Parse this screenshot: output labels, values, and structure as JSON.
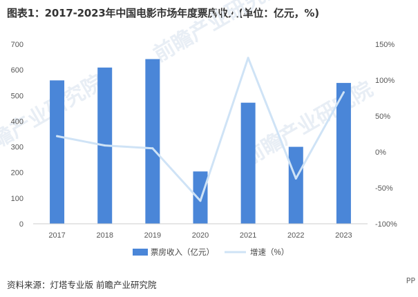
{
  "title": "图表1：2017-2023年中国电影市场年度票房收入(单位：亿元，%)",
  "source": "资料来源：灯塔专业版 前瞻产业研究院",
  "corner_text": "PP",
  "watermark_text": "前瞻产业研究院",
  "chart_data": {
    "type": "bar+line",
    "title": "图表1：2017-2023年中国电影市场年度票房收入(单位：亿元，%)",
    "categories": [
      "2017",
      "2018",
      "2019",
      "2020",
      "2021",
      "2022",
      "2023"
    ],
    "series": [
      {
        "name": "票房收入（亿元）",
        "type": "bar",
        "axis": "left",
        "values": [
          559,
          609,
          642,
          204,
          472,
          300,
          549
        ],
        "color": "#4a86d8"
      },
      {
        "name": "增速（%）",
        "type": "line",
        "axis": "right",
        "values": [
          22,
          9,
          5,
          -68,
          131,
          -37,
          83
        ],
        "color": "#cfe3f6"
      }
    ],
    "y_left": {
      "min": 0,
      "max": 700,
      "ticks": [
        0,
        100,
        200,
        300,
        400,
        500,
        600,
        700
      ],
      "tick_labels": [
        "0",
        "100",
        "200",
        "300",
        "400",
        "500",
        "600",
        "700"
      ]
    },
    "y_right": {
      "min": -100,
      "max": 150,
      "ticks": [
        -100,
        -50,
        0,
        50,
        100,
        150
      ],
      "tick_labels": [
        "-100%",
        "-50%",
        "0%",
        "50%",
        "100%",
        "150%"
      ]
    },
    "legend": {
      "position": "bottom-center",
      "entries": [
        "票房收入（亿元）",
        "增速（%）"
      ]
    },
    "grid": false
  }
}
